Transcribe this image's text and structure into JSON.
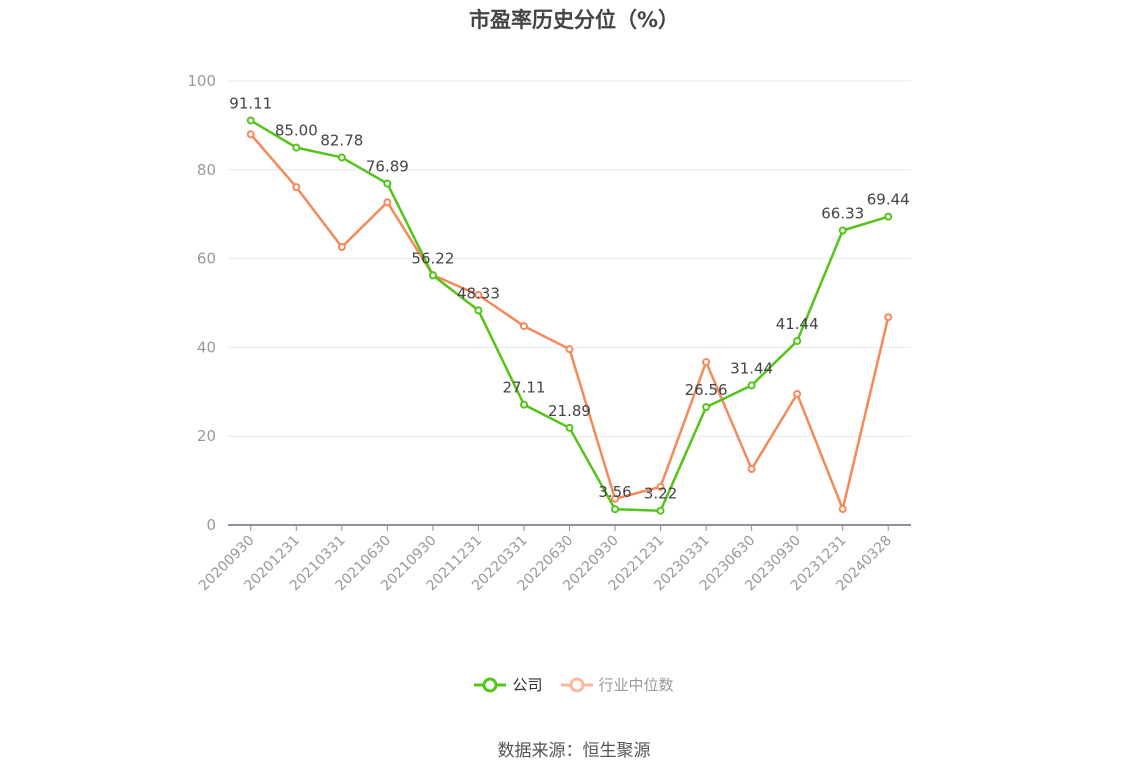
{
  "title": "市盈率历史分位（%）",
  "source": "数据来源：恒生聚源",
  "legend": [
    {
      "label": "公司",
      "color": "#52c41a"
    },
    {
      "label": "行业中位数",
      "color": "#f5895a"
    }
  ],
  "colors": {
    "company": "#52c41a",
    "industry": "#f5895a",
    "grid": "#e6e9f0",
    "axis": "#8e8e9e",
    "tick_label": "#999999",
    "data_label": "#444444"
  },
  "chart_data": {
    "type": "line",
    "title": "市盈率历史分位（%）",
    "xlabel": "",
    "ylabel": "",
    "ylim": [
      0,
      100
    ],
    "yticks": [
      0,
      20,
      40,
      60,
      80,
      100
    ],
    "grid": true,
    "legend_position": "bottom",
    "categories": [
      "20200930",
      "20201231",
      "20210331",
      "20210630",
      "20210930",
      "20211231",
      "20220331",
      "20220630",
      "20220930",
      "20221231",
      "20230331",
      "20230630",
      "20230930",
      "20231231",
      "20240328"
    ],
    "series": [
      {
        "name": "公司",
        "values": [
          91.11,
          85.0,
          82.78,
          76.89,
          56.22,
          48.33,
          27.11,
          21.89,
          3.56,
          3.22,
          26.56,
          31.44,
          41.44,
          66.33,
          69.44
        ],
        "show_labels": true
      },
      {
        "name": "行业中位数",
        "values": [
          88.0,
          76.1,
          62.6,
          72.7,
          56.3,
          51.8,
          44.8,
          39.6,
          5.9,
          8.6,
          36.7,
          12.6,
          29.5,
          3.6,
          46.8
        ],
        "show_labels": false
      }
    ]
  }
}
